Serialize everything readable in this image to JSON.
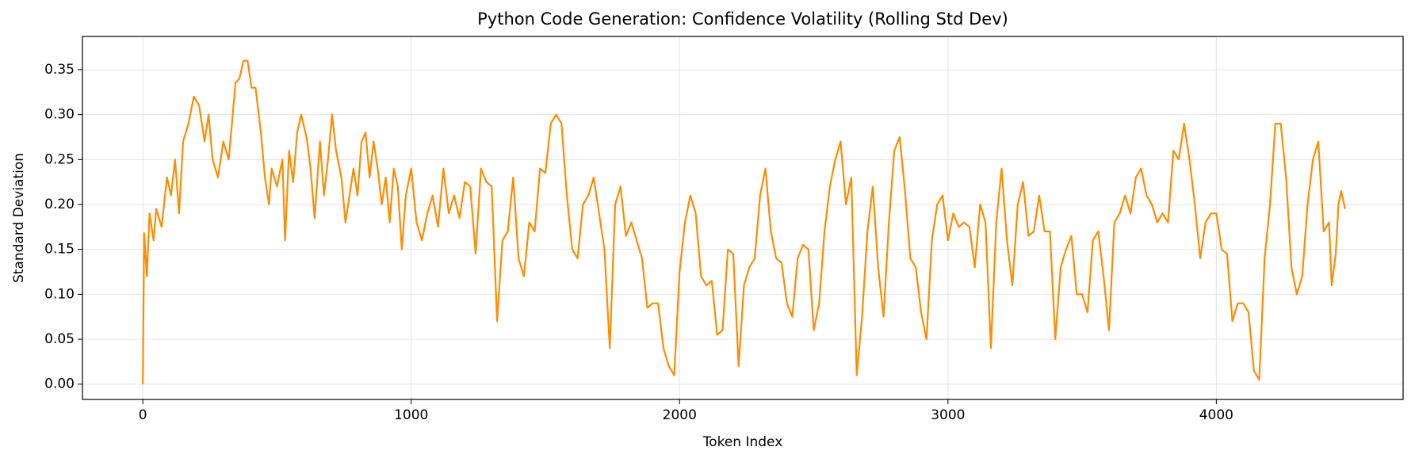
{
  "chart_data": {
    "type": "line",
    "title": "Python Code Generation: Confidence Volatility (Rolling Std Dev)",
    "x_label": "Token Index",
    "y_label": "Standard Deviation",
    "xlim": [
      -225,
      4696
    ],
    "ylim": [
      -0.017,
      0.387
    ],
    "xticks": [
      0,
      1000,
      2000,
      3000,
      4000
    ],
    "yticks": [
      {
        "value": 0,
        "label": "0.00"
      },
      0.05,
      {
        "value": 0.1,
        "label": "0.10"
      },
      0.15,
      {
        "value": 0.2,
        "label": "0.20"
      },
      0.25,
      {
        "value": 0.3,
        "label": "0.30"
      },
      0.35
    ],
    "grid": true,
    "series": [
      {
        "color": "#ff8c00",
        "x": [
          0,
          5,
          15,
          25,
          40,
          50,
          70,
          90,
          105,
          120,
          135,
          150,
          170,
          190,
          210,
          230,
          245,
          260,
          280,
          300,
          320,
          335,
          345,
          360,
          375,
          390,
          405,
          420,
          440,
          455,
          470,
          480,
          500,
          520,
          530,
          545,
          560,
          575,
          590,
          610,
          625,
          640,
          660,
          675,
          690,
          705,
          720,
          740,
          755,
          770,
          785,
          800,
          815,
          830,
          845,
          860,
          875,
          890,
          905,
          920,
          935,
          950,
          965,
          980,
          1000,
          1020,
          1040,
          1060,
          1080,
          1100,
          1120,
          1140,
          1160,
          1180,
          1200,
          1220,
          1240,
          1260,
          1280,
          1300,
          1320,
          1340,
          1360,
          1380,
          1400,
          1420,
          1440,
          1460,
          1480,
          1500,
          1520,
          1540,
          1560,
          1580,
          1600,
          1620,
          1640,
          1660,
          1680,
          1700,
          1720,
          1740,
          1760,
          1780,
          1800,
          1820,
          1840,
          1860,
          1880,
          1900,
          1920,
          1940,
          1960,
          1980,
          2000,
          2020,
          2040,
          2060,
          2080,
          2100,
          2120,
          2140,
          2160,
          2180,
          2200,
          2220,
          2240,
          2260,
          2280,
          2300,
          2320,
          2340,
          2360,
          2380,
          2400,
          2420,
          2440,
          2460,
          2480,
          2500,
          2520,
          2540,
          2560,
          2580,
          2600,
          2620,
          2640,
          2660,
          2680,
          2700,
          2720,
          2740,
          2760,
          2780,
          2800,
          2820,
          2840,
          2860,
          2880,
          2900,
          2920,
          2940,
          2960,
          2980,
          3000,
          3020,
          3040,
          3060,
          3080,
          3100,
          3120,
          3140,
          3160,
          3180,
          3200,
          3220,
          3240,
          3260,
          3280,
          3300,
          3320,
          3340,
          3360,
          3380,
          3400,
          3420,
          3440,
          3460,
          3480,
          3500,
          3520,
          3540,
          3560,
          3580,
          3600,
          3620,
          3640,
          3660,
          3680,
          3700,
          3720,
          3740,
          3760,
          3780,
          3800,
          3820,
          3840,
          3860,
          3880,
          3900,
          3920,
          3940,
          3960,
          3980,
          4000,
          4020,
          4040,
          4060,
          4080,
          4100,
          4120,
          4140,
          4160,
          4180,
          4200,
          4220,
          4240,
          4260,
          4280,
          4300,
          4320,
          4340,
          4360,
          4380,
          4400,
          4420,
          4430,
          4445,
          4455,
          4465,
          4480
        ],
        "values": [
          0,
          0.168,
          0.12,
          0.19,
          0.16,
          0.195,
          0.175,
          0.23,
          0.21,
          0.25,
          0.19,
          0.27,
          0.29,
          0.32,
          0.31,
          0.27,
          0.3,
          0.25,
          0.23,
          0.27,
          0.25,
          0.3,
          0.335,
          0.34,
          0.36,
          0.36,
          0.33,
          0.33,
          0.28,
          0.23,
          0.2,
          0.24,
          0.22,
          0.25,
          0.16,
          0.26,
          0.225,
          0.28,
          0.3,
          0.275,
          0.24,
          0.185,
          0.27,
          0.21,
          0.25,
          0.3,
          0.26,
          0.23,
          0.18,
          0.21,
          0.24,
          0.21,
          0.27,
          0.28,
          0.23,
          0.27,
          0.24,
          0.2,
          0.23,
          0.18,
          0.24,
          0.22,
          0.15,
          0.21,
          0.24,
          0.18,
          0.16,
          0.19,
          0.21,
          0.175,
          0.24,
          0.19,
          0.21,
          0.185,
          0.225,
          0.22,
          0.145,
          0.24,
          0.225,
          0.22,
          0.07,
          0.16,
          0.17,
          0.23,
          0.14,
          0.12,
          0.18,
          0.17,
          0.24,
          0.235,
          0.29,
          0.3,
          0.29,
          0.21,
          0.15,
          0.14,
          0.2,
          0.21,
          0.23,
          0.19,
          0.15,
          0.04,
          0.2,
          0.22,
          0.165,
          0.18,
          0.16,
          0.14,
          0.085,
          0.09,
          0.09,
          0.04,
          0.02,
          0.01,
          0.125,
          0.18,
          0.21,
          0.19,
          0.12,
          0.11,
          0.115,
          0.055,
          0.06,
          0.15,
          0.145,
          0.02,
          0.11,
          0.13,
          0.14,
          0.21,
          0.24,
          0.17,
          0.14,
          0.135,
          0.09,
          0.075,
          0.14,
          0.155,
          0.15,
          0.06,
          0.09,
          0.17,
          0.22,
          0.25,
          0.27,
          0.2,
          0.23,
          0.01,
          0.075,
          0.17,
          0.22,
          0.13,
          0.075,
          0.18,
          0.26,
          0.275,
          0.215,
          0.14,
          0.13,
          0.08,
          0.05,
          0.16,
          0.2,
          0.21,
          0.16,
          0.19,
          0.175,
          0.18,
          0.175,
          0.13,
          0.2,
          0.18,
          0.04,
          0.18,
          0.24,
          0.16,
          0.11,
          0.2,
          0.225,
          0.165,
          0.17,
          0.21,
          0.17,
          0.17,
          0.05,
          0.13,
          0.15,
          0.165,
          0.1,
          0.1,
          0.08,
          0.16,
          0.17,
          0.12,
          0.06,
          0.18,
          0.19,
          0.21,
          0.19,
          0.23,
          0.24,
          0.21,
          0.2,
          0.18,
          0.19,
          0.18,
          0.26,
          0.25,
          0.29,
          0.25,
          0.2,
          0.14,
          0.18,
          0.19,
          0.19,
          0.15,
          0.145,
          0.07,
          0.09,
          0.09,
          0.08,
          0.015,
          0.005,
          0.14,
          0.2,
          0.29,
          0.29,
          0.23,
          0.13,
          0.1,
          0.12,
          0.2,
          0.25,
          0.27,
          0.17,
          0.18,
          0.11,
          0.145,
          0.2,
          0.215,
          0.195
        ]
      }
    ]
  }
}
